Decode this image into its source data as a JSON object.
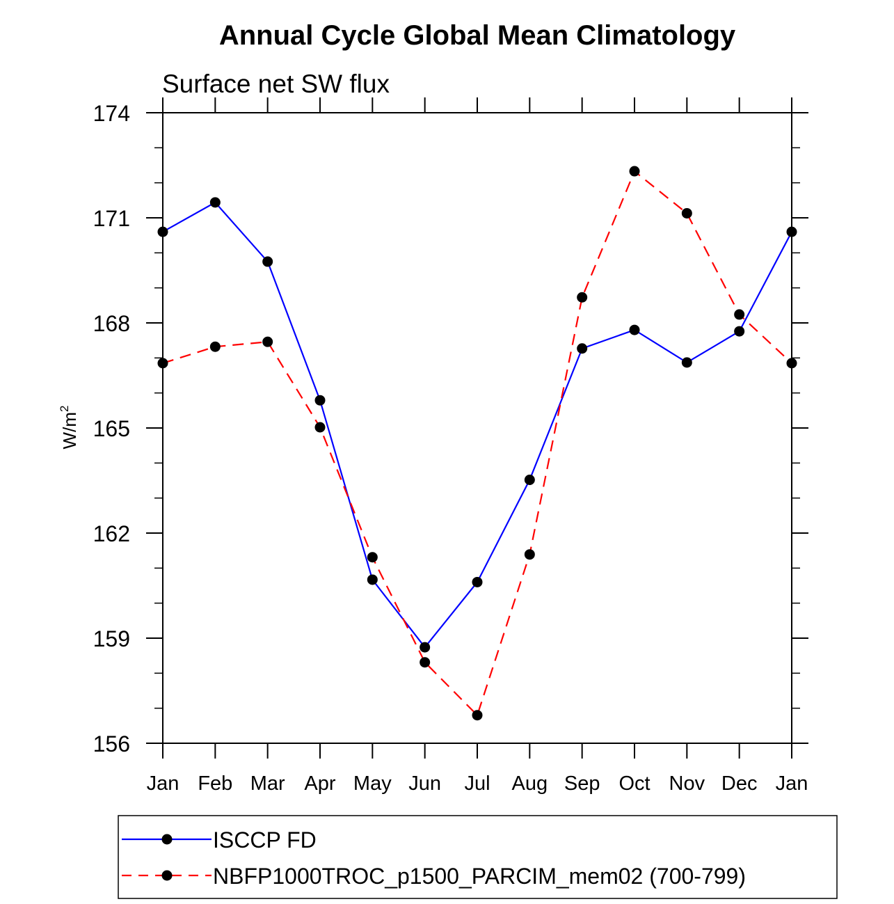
{
  "chart_data": {
    "type": "line",
    "title": "Annual Cycle Global Mean Climatology",
    "subtitle": "Surface net SW flux",
    "xlabel": "",
    "ylabel": "W/m",
    "ylabel_superscript": "2",
    "categories": [
      "Jan",
      "Feb",
      "Mar",
      "Apr",
      "May",
      "Jun",
      "Jul",
      "Aug",
      "Sep",
      "Oct",
      "Nov",
      "Dec",
      "Jan"
    ],
    "ylim": [
      156,
      174
    ],
    "yticks": [
      156,
      159,
      162,
      165,
      168,
      171,
      174
    ],
    "yminor_step": 1,
    "grid": false,
    "legend_position": "bottom",
    "series": [
      {
        "name": "ISCCP FD",
        "color": "#0000ff",
        "line_style": "solid",
        "marker": "filled-circle",
        "marker_color": "#000000",
        "values": [
          170.6,
          171.44,
          169.75,
          165.79,
          160.67,
          158.74,
          160.6,
          163.52,
          167.27,
          167.8,
          166.87,
          167.76,
          170.6
        ]
      },
      {
        "name": "NBFP1000TROC_p1500_PARCIM_mem02 (700-799)",
        "color": "#ff0000",
        "line_style": "dashed",
        "marker": "filled-circle",
        "marker_color": "#000000",
        "values": [
          166.85,
          167.32,
          167.46,
          165.02,
          161.31,
          158.31,
          156.8,
          161.39,
          168.73,
          172.33,
          171.13,
          168.24,
          166.85
        ]
      }
    ]
  }
}
